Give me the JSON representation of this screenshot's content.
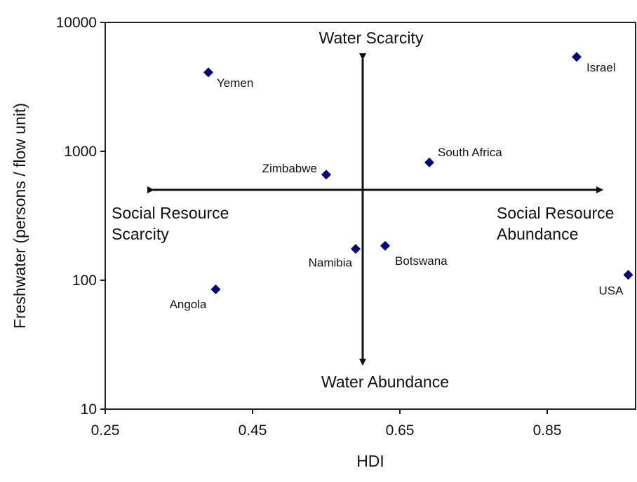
{
  "chart_data": {
    "type": "scatter",
    "xlabel": "HDI",
    "ylabel": "Freshwater (persons / flow unit)",
    "xlim": [
      0.25,
      0.97
    ],
    "ylim": [
      10,
      10000
    ],
    "y_scale": "log",
    "x_ticks": [
      "0.25",
      "0.45",
      "0.65",
      "0.85"
    ],
    "y_ticks": [
      "10",
      "100",
      "1000",
      "10000"
    ],
    "grid": false,
    "marker": "diamond",
    "marker_color": "#00007f",
    "points": [
      {
        "label": "Yemen",
        "x": 0.39,
        "y": 4100
      },
      {
        "label": "Israel",
        "x": 0.89,
        "y": 5400
      },
      {
        "label": "Zimbabwe",
        "x": 0.55,
        "y": 660
      },
      {
        "label": "South Africa",
        "x": 0.69,
        "y": 820
      },
      {
        "label": "Namibia",
        "x": 0.59,
        "y": 175
      },
      {
        "label": "Botswana",
        "x": 0.63,
        "y": 185
      },
      {
        "label": "Angola",
        "x": 0.4,
        "y": 85
      },
      {
        "label": "USA",
        "x": 0.96,
        "y": 110
      }
    ],
    "annotations": {
      "top": "Water Scarcity",
      "bottom": "Water Abundance",
      "left_line1": "Social Resource",
      "left_line2": "Scarcity",
      "right_line1": "Social Resource",
      "right_line2": "Abundance"
    }
  }
}
